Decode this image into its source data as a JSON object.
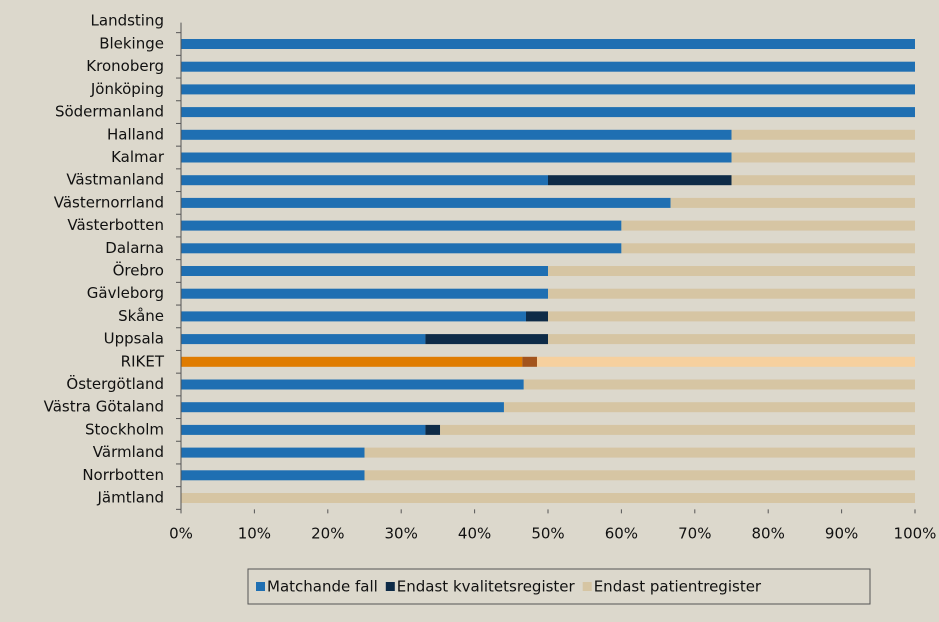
{
  "chart_data": {
    "type": "stacked_barh",
    "ylabel": "Landsting",
    "categories": [
      "Blekinge",
      "Kronoberg",
      "Jönköping",
      "Södermanland",
      "Halland",
      "Kalmar",
      "Västmanland",
      "Västernorrland",
      "Västerbotten",
      "Dalarna",
      "Örebro",
      "Gävleborg",
      "Skåne",
      "Uppsala",
      "RIKET",
      "Östergötland",
      "Västra Götaland",
      "Stockholm",
      "Värmland",
      "Norrbotten",
      "Jämtland"
    ],
    "series": [
      {
        "name": "Matchande fall",
        "color": "#1f6fb2",
        "values": [
          100,
          100,
          100,
          100,
          75,
          75,
          50,
          66.7,
          60,
          60,
          50,
          50,
          47,
          33.3,
          46.5,
          46.7,
          44,
          33.3,
          25,
          25,
          0
        ]
      },
      {
        "name": "Endast kvalitetsregister",
        "color": "#0e2b47",
        "values": [
          0,
          0,
          0,
          0,
          0,
          0,
          25,
          0,
          0,
          0,
          0,
          0,
          3,
          16.7,
          2,
          0,
          0,
          2,
          0,
          0,
          0
        ]
      },
      {
        "name": "Endast patientregister",
        "color": "#d6c5a3",
        "values": [
          0,
          0,
          0,
          0,
          25,
          25,
          25,
          33.3,
          40,
          40,
          50,
          50,
          50,
          50,
          51.5,
          53.3,
          56,
          64.7,
          75,
          75,
          100
        ]
      }
    ],
    "highlight": {
      "index": 14,
      "colors": [
        "#e07c00",
        "#a3541c",
        "#f6d09e"
      ]
    },
    "xlim": [
      0,
      100
    ],
    "xticks": [
      {
        "value": 0,
        "label": "0%"
      },
      {
        "value": 10,
        "label": "10%"
      },
      {
        "value": 20,
        "label": "20%"
      },
      {
        "value": 30,
        "label": "30%"
      },
      {
        "value": 40,
        "label": "40%"
      },
      {
        "value": 50,
        "label": "50%"
      },
      {
        "value": 60,
        "label": "60%"
      },
      {
        "value": 70,
        "label": "70%"
      },
      {
        "value": 80,
        "label": "80%"
      },
      {
        "value": 90,
        "label": "90%"
      },
      {
        "value": 100,
        "label": "100%"
      }
    ],
    "legend": "bottom"
  }
}
